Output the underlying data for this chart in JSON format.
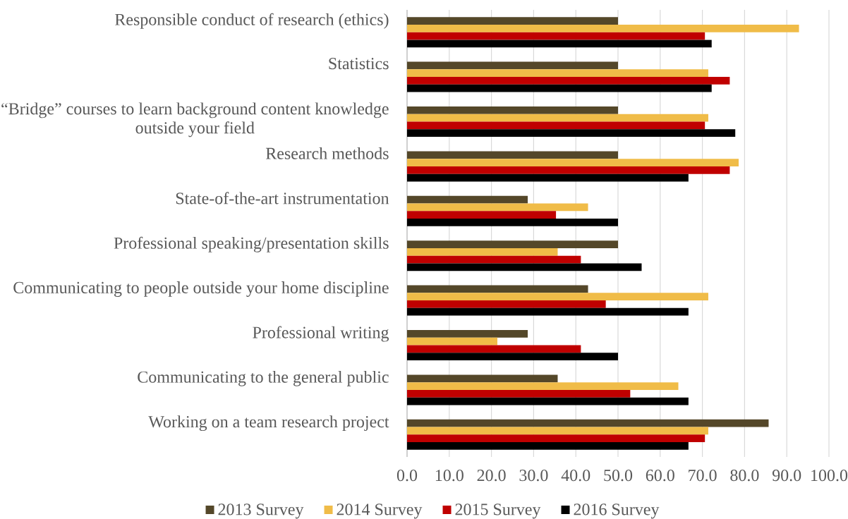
{
  "chart_data": {
    "type": "bar",
    "orientation": "horizontal",
    "categories": [
      "Responsible conduct of research (ethics)",
      "Statistics",
      "“Bridge” courses to learn background content knowledge outside your field",
      "Research methods",
      "State-of-the-art instrumentation",
      "Professional speaking/presentation skills",
      "Communicating to people outside your home discipline",
      "Professional writing",
      "Communicating to the general public",
      "Working on a team research project"
    ],
    "series": [
      {
        "name": "2013 Survey",
        "color": "#544729",
        "values": [
          50.0,
          50.0,
          50.0,
          50.0,
          28.6,
          50.0,
          42.9,
          28.6,
          35.7,
          85.7
        ]
      },
      {
        "name": "2014 Survey",
        "color": "#f0bc48",
        "values": [
          92.9,
          71.4,
          71.4,
          78.6,
          42.9,
          35.7,
          71.4,
          21.4,
          64.3,
          71.4
        ]
      },
      {
        "name": "2015 Survey",
        "color": "#c00000",
        "values": [
          70.6,
          76.5,
          70.6,
          76.5,
          35.3,
          41.2,
          47.1,
          41.2,
          52.9,
          70.6
        ]
      },
      {
        "name": "2016 Survey",
        "color": "#000000",
        "values": [
          72.2,
          72.2,
          77.8,
          66.7,
          50.0,
          55.6,
          66.7,
          50.0,
          66.7,
          66.7
        ]
      }
    ],
    "xlim": [
      0,
      100
    ],
    "xticks": [
      {
        "value": 0,
        "label": "0.0"
      },
      {
        "value": 10,
        "label": "10.0"
      },
      {
        "value": 20,
        "label": "20.0"
      },
      {
        "value": 30,
        "label": "30.0"
      },
      {
        "value": 40,
        "label": "40.0"
      },
      {
        "value": 50,
        "label": "50.0"
      },
      {
        "value": 60,
        "label": "60.0"
      },
      {
        "value": 70,
        "label": "70.0"
      },
      {
        "value": 80,
        "label": "80.0"
      },
      {
        "value": 90,
        "label": "90.0"
      },
      {
        "value": 100,
        "label": "100.0"
      }
    ],
    "grid": "x",
    "legend": "bottom"
  }
}
